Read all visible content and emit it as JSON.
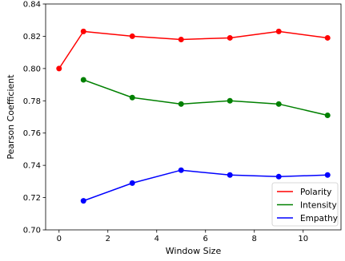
{
  "chart_data": {
    "type": "line",
    "title": "",
    "xlabel": "Window Size",
    "ylabel": "Pearson Coefficient",
    "xlim": [
      -0.55,
      11.55
    ],
    "ylim": [
      0.7,
      0.84
    ],
    "xticks": [
      0,
      2,
      4,
      6,
      8,
      10
    ],
    "yticks": [
      0.7,
      0.72,
      0.74,
      0.76,
      0.78,
      0.8,
      0.82,
      0.84
    ],
    "xtick_labels": [
      "0",
      "2",
      "4",
      "6",
      "8",
      "10"
    ],
    "ytick_labels": [
      "0.70",
      "0.72",
      "0.74",
      "0.76",
      "0.78",
      "0.80",
      "0.82",
      "0.84"
    ],
    "grid": false,
    "legend_position": "lower-right",
    "series": [
      {
        "name": "Polarity",
        "color": "#ff0000",
        "x": [
          0,
          1,
          3,
          5,
          7,
          9,
          11
        ],
        "y": [
          0.8,
          0.823,
          0.82,
          0.818,
          0.819,
          0.823,
          0.819
        ]
      },
      {
        "name": "Intensity",
        "color": "#008000",
        "x": [
          1,
          3,
          5,
          7,
          9,
          11
        ],
        "y": [
          0.793,
          0.782,
          0.778,
          0.78,
          0.778,
          0.771
        ]
      },
      {
        "name": "Empathy",
        "color": "#0000ff",
        "x": [
          1,
          3,
          5,
          7,
          9,
          11
        ],
        "y": [
          0.718,
          0.729,
          0.737,
          0.734,
          0.733,
          0.734
        ]
      }
    ]
  }
}
